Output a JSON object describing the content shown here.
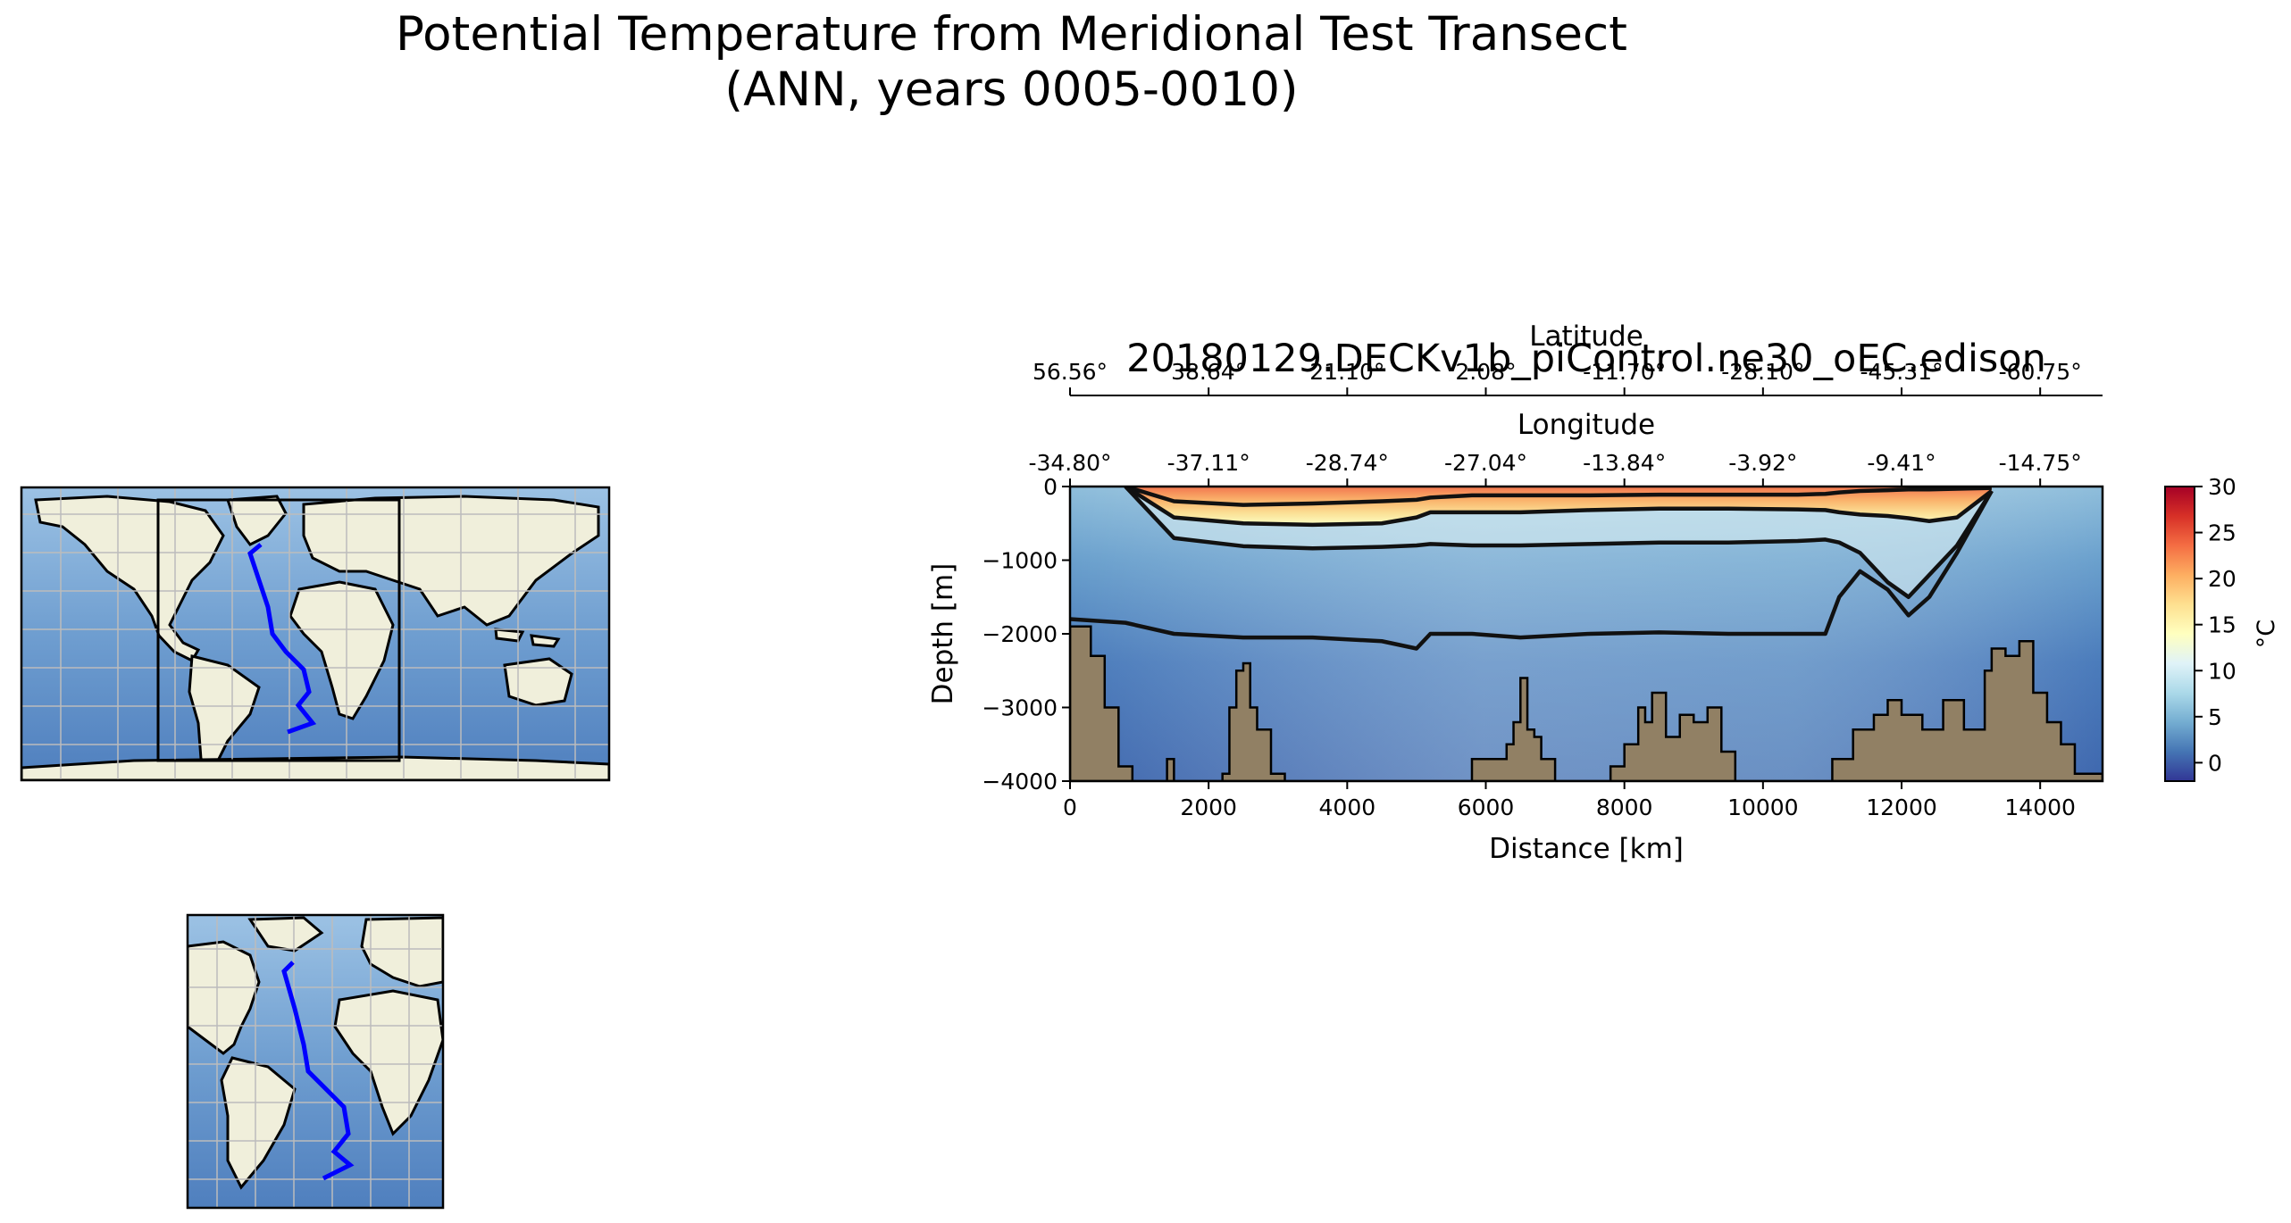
{
  "figure": {
    "title_line1": "Potential Temperature from Meridional Test Transect",
    "title_line2": "(ANN, years 0005-0010)"
  },
  "chart_data": {
    "type": "heatmap",
    "title": "20180129.DECKv1b_piControl.ne30_oEC.edison",
    "xlabel": "Distance [km]",
    "ylabel": "Depth [m]",
    "xlim": [
      0,
      14900
    ],
    "ylim": [
      -4000,
      0
    ],
    "x_ticks": [
      0,
      2000,
      4000,
      6000,
      8000,
      10000,
      12000,
      14000
    ],
    "y_ticks": [
      0,
      -1000,
      -2000,
      -3000,
      -4000
    ],
    "x_tick_labels": [
      "0",
      "2000",
      "4000",
      "6000",
      "8000",
      "10000",
      "12000",
      "14000"
    ],
    "y_tick_labels": [
      "0",
      "−1000",
      "−2000",
      "−3000",
      "−4000"
    ],
    "secondary_axes": [
      {
        "label": "Longitude",
        "tick_labels": [
          "-34.80°",
          "-37.11°",
          "-28.74°",
          "-27.04°",
          "-13.84°",
          "-3.92°",
          "-9.41°",
          "-14.75°"
        ]
      },
      {
        "label": "Latitude",
        "tick_labels": [
          "56.56°",
          "38.64°",
          "21.10°",
          "2.08°",
          "-11.70°",
          "-28.10°",
          "-45.31°",
          "-60.75°"
        ]
      }
    ],
    "colorbar": {
      "label": "°C",
      "range": [
        -2,
        30
      ],
      "ticks": [
        0,
        5,
        10,
        15,
        20,
        25,
        30
      ],
      "tick_labels": [
        "0",
        "5",
        "10",
        "15",
        "20",
        "25",
        "30"
      ],
      "colormap": "RdYlBu_r"
    },
    "contour_depth_profiles_m": {
      "x_km": [
        0,
        800,
        1500,
        2500,
        3500,
        4500,
        5000,
        5200,
        5800,
        6500,
        7500,
        8500,
        9500,
        10500,
        10900,
        11100,
        11400,
        11800,
        12100,
        12400,
        12800,
        13300,
        14900
      ],
      "level_1": [
        null,
        0,
        -200,
        -250,
        -230,
        -200,
        -180,
        -150,
        -120,
        -120,
        -120,
        -110,
        -110,
        -110,
        -100,
        -80,
        -60,
        -50,
        -40,
        -40,
        -30,
        -20,
        null
      ],
      "level_2": [
        null,
        0,
        -420,
        -500,
        -520,
        -500,
        -420,
        -350,
        -350,
        -350,
        -320,
        -300,
        -300,
        -310,
        -320,
        -350,
        -380,
        -400,
        -430,
        -470,
        -420,
        -60,
        null
      ],
      "level_3": [
        null,
        0,
        -700,
        -810,
        -840,
        -820,
        -800,
        -780,
        -800,
        -800,
        -780,
        -760,
        -760,
        -740,
        -720,
        -760,
        -900,
        -1300,
        -1500,
        -1200,
        -800,
        -60,
        null
      ],
      "level_4": [
        -1800,
        -1850,
        -2000,
        -2050,
        -2050,
        -2100,
        -2200,
        -2000,
        -2000,
        -2050,
        -2000,
        -1980,
        -2000,
        -2000,
        -2000,
        -1500,
        -1150,
        -1400,
        -1750,
        -1500,
        -900,
        -60,
        null
      ]
    },
    "bathymetry_depth_m": {
      "x_km": [
        0,
        300,
        500,
        700,
        900,
        1400,
        1500,
        1700,
        2200,
        2300,
        2400,
        2500,
        2600,
        2700,
        2900,
        3100,
        5500,
        5800,
        6300,
        6400,
        6500,
        6600,
        6700,
        6800,
        7000,
        7500,
        7800,
        8000,
        8200,
        8300,
        8400,
        8600,
        8800,
        9000,
        9200,
        9400,
        9600,
        10500,
        11000,
        11300,
        11600,
        11800,
        12000,
        12300,
        12600,
        12900,
        13200,
        13300,
        13500,
        13700,
        13900,
        14100,
        14300,
        14500,
        14900
      ],
      "depth": [
        -1900,
        -2300,
        -3000,
        -3800,
        -4000,
        -3700,
        -4000,
        -4000,
        -3900,
        -3000,
        -2500,
        -2400,
        -3000,
        -3300,
        -3900,
        -4000,
        -4000,
        -3700,
        -3500,
        -3200,
        -2600,
        -3300,
        -3400,
        -3700,
        -4000,
        -4000,
        -3800,
        -3500,
        -3000,
        -3200,
        -2800,
        -3400,
        -3100,
        -3200,
        -3000,
        -3600,
        -4000,
        -4000,
        -3700,
        -3300,
        -3100,
        -2900,
        -3100,
        -3300,
        -2900,
        -3300,
        -2500,
        -2200,
        -2300,
        -2100,
        -2800,
        -3200,
        -3500,
        -3900,
        -4000
      ]
    }
  },
  "maps": {
    "global_map": {
      "projection": "PlateCarree",
      "description_colors": {
        "land": "#f0efdb",
        "ocean": "#7aa7d6",
        "transect": "#0000ff"
      }
    },
    "regional_map": {
      "projection": "PlateCarree"
    }
  },
  "colors": {
    "land": "#f0efdb",
    "ocean": "#7fa9d5",
    "transect": "#0000ff",
    "bathymetry": "#918064",
    "cold": "#3d63a8",
    "warm": "#d9352a"
  }
}
